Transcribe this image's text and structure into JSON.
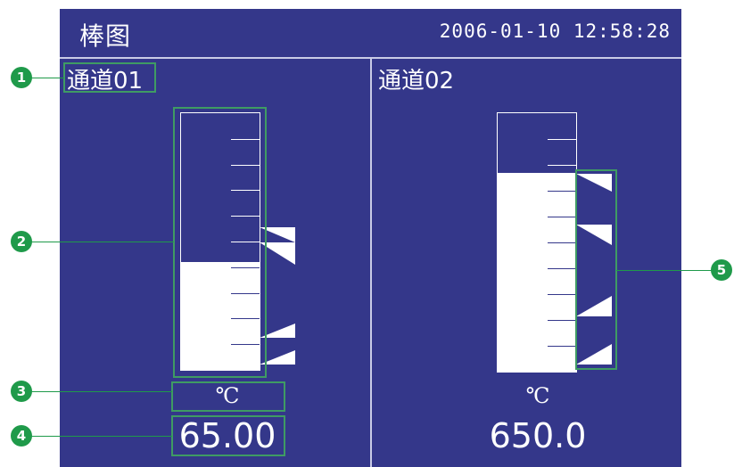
{
  "title_bar": {
    "title": "棒图",
    "datetime": "2006-01-10 12:58:28"
  },
  "channels": [
    {
      "name": "通道01",
      "unit": "℃",
      "value": "65.00",
      "fill_fraction": 0.42
    },
    {
      "name": "通道02",
      "unit": "℃",
      "value": "650.0",
      "fill_fraction": 0.77
    }
  ],
  "callouts": [
    "1",
    "2",
    "3",
    "4",
    "5"
  ],
  "colors": {
    "screen_background": "#34378a",
    "foreground": "#ffffff",
    "callout_green": "#1f9a4a",
    "callout_box_green": "#3f9b63"
  }
}
